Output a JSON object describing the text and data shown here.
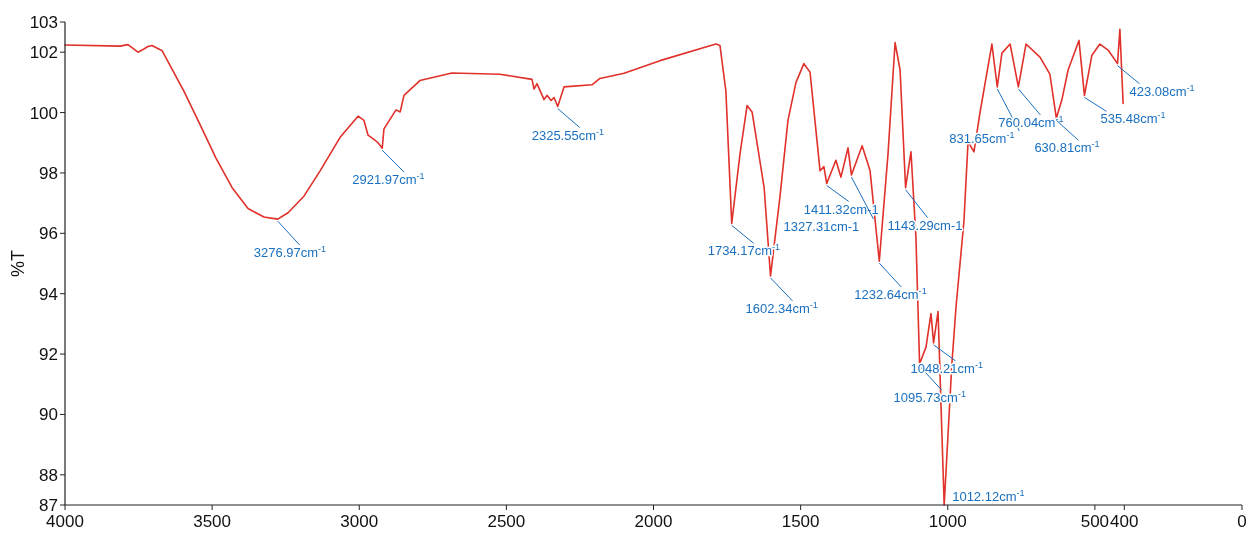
{
  "chart_data": {
    "type": "line",
    "ylabel": "%T",
    "xlim": [
      4000,
      0
    ],
    "xticks": [
      4000,
      3500,
      3000,
      2500,
      2000,
      1500,
      1000,
      500,
      400,
      0
    ],
    "ylim": [
      87,
      103
    ],
    "yticks": [
      87,
      88,
      90,
      92,
      94,
      96,
      98,
      100,
      102,
      103
    ],
    "grid": false,
    "marker": "none",
    "line_style": "solid",
    "series": [
      {
        "color": "#e0312b",
        "x": [
          4000,
          3813,
          3786,
          3752,
          3738,
          3718,
          3704,
          3670,
          3650,
          3596,
          3541,
          3487,
          3432,
          3378,
          3324,
          3276.97,
          3242,
          3188,
          3133,
          3065,
          3004,
          2984,
          2970,
          2950,
          2936,
          2921.97,
          2916,
          2875,
          2861,
          2848,
          2794,
          2685,
          2522,
          2413,
          2406,
          2396,
          2372,
          2362,
          2348,
          2338,
          2325.55,
          2304,
          2209,
          2182,
          2100,
          1978,
          1788,
          1774,
          1754,
          1734.17,
          1706,
          1682,
          1665,
          1624,
          1602.34,
          1570,
          1543,
          1516,
          1489,
          1468,
          1434,
          1421,
          1411.32,
          1380,
          1363,
          1339,
          1327.31,
          1291,
          1264,
          1232.64,
          1203,
          1179,
          1162,
          1143.29,
          1125,
          1108,
          1095.73,
          1074,
          1057,
          1048.21,
          1033,
          1012.12,
          986,
          972,
          945,
          931,
          911,
          890,
          850,
          831.65,
          816,
          788,
          760.04,
          734,
          686,
          653,
          630.81,
          612,
          591,
          554,
          535.48,
          510,
          483,
          455,
          423.08,
          415,
          404
        ],
        "values": [
          102.24,
          102.2,
          102.25,
          102.0,
          102.07,
          102.19,
          102.22,
          102.05,
          101.69,
          100.71,
          99.6,
          98.49,
          97.51,
          96.82,
          96.54,
          96.47,
          96.68,
          97.23,
          98.07,
          99.18,
          99.88,
          99.74,
          99.25,
          99.11,
          99.0,
          98.82,
          99.46,
          100.09,
          100.02,
          100.57,
          101.06,
          101.31,
          101.27,
          101.1,
          100.78,
          100.96,
          100.43,
          100.57,
          100.4,
          100.5,
          100.2,
          100.85,
          100.92,
          101.13,
          101.3,
          101.72,
          102.27,
          102.22,
          100.71,
          96.33,
          98.63,
          100.23,
          100.02,
          97.51,
          94.59,
          97.23,
          99.74,
          100.99,
          101.62,
          101.34,
          98.07,
          98.21,
          97.65,
          98.42,
          97.86,
          98.83,
          97.93,
          98.9,
          98.07,
          95.08,
          98.63,
          102.32,
          101.41,
          97.51,
          98.7,
          95.84,
          91.67,
          92.23,
          93.34,
          92.37,
          93.41,
          87.0,
          91.67,
          93.55,
          96.4,
          99.04,
          98.7,
          100.02,
          102.27,
          100.85,
          101.97,
          102.27,
          100.85,
          102.27,
          101.83,
          101.27,
          99.81,
          100.43,
          101.41,
          102.39,
          100.57,
          101.9,
          102.27,
          102.07,
          101.62,
          102.76,
          100.3
        ]
      }
    ],
    "annotations": [
      {
        "text": "3276.97cm$^{-1}$",
        "x": 3276.97,
        "y": 96.47
      },
      {
        "text": "2921.97cm$^{-1}$",
        "x": 2921.97,
        "y": 98.82
      },
      {
        "text": "2325.55cm$^{-1}$",
        "x": 2325.55,
        "y": 100.2
      },
      {
        "text": "1734.17cm$^{-1}$",
        "x": 1734.17,
        "y": 96.33
      },
      {
        "text": "1602.34cm$^{-1}$",
        "x": 1602.34,
        "y": 94.59
      },
      {
        "text": "1411.32cm-1",
        "x": 1411.32,
        "y": 97.65
      },
      {
        "text": "1327.31cm-1",
        "x": 1327.31,
        "y": 97.93
      },
      {
        "text": "1232.64cm$^{-1}$",
        "x": 1232.64,
        "y": 95.08
      },
      {
        "text": "1143.29cm-1",
        "x": 1143.29,
        "y": 97.51
      },
      {
        "text": "1095.73cm$^{-1}$",
        "x": 1095.73,
        "y": 91.67
      },
      {
        "text": "1048.21cm$^{-1}$",
        "x": 1048.21,
        "y": 92.37
      },
      {
        "text": "1012.12cm$^{-1}$",
        "x": 1012.12,
        "y": 87.0
      },
      {
        "text": "831.65cm$^{-1}$",
        "x": 831.65,
        "y": 100.85
      },
      {
        "text": "760.04cm$^{-1}$",
        "x": 760.04,
        "y": 100.85
      },
      {
        "text": "630.81cm$^{-1}$",
        "x": 630.81,
        "y": 99.81
      },
      {
        "text": "535.48cm$^{-1}$",
        "x": 535.48,
        "y": 100.57
      },
      {
        "text": "423.08cm$^{-1}$",
        "x": 423.08,
        "y": 101.62
      }
    ]
  }
}
